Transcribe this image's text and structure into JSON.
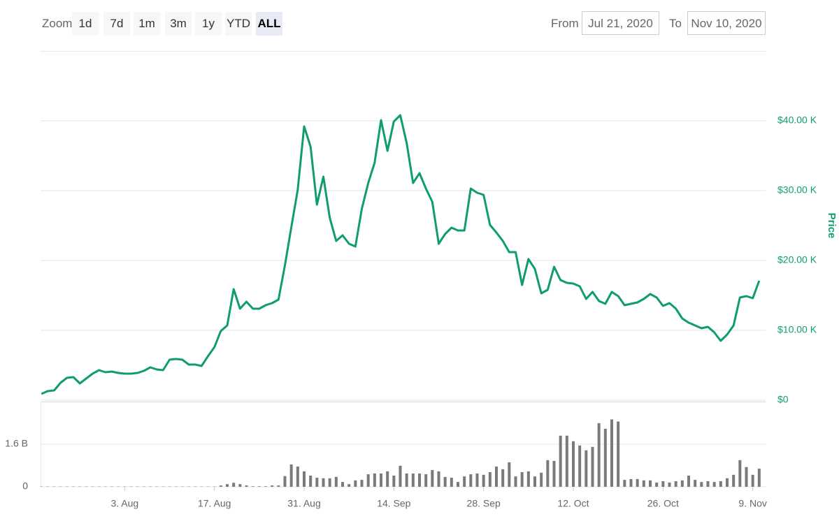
{
  "controls": {
    "zoom_label": "Zoom",
    "zoom_buttons": [
      "1d",
      "7d",
      "1m",
      "3m",
      "1y",
      "YTD",
      "ALL"
    ],
    "selected": 6,
    "from_label": "From",
    "from": "Jul 21, 2020",
    "to_label": "To",
    "to": "Nov 10, 2020"
  },
  "chart_data": {
    "type": "line",
    "ylabel": "Price",
    "x": [
      "2020-07-21",
      "2020-07-22",
      "2020-07-23",
      "2020-07-24",
      "2020-07-25",
      "2020-07-26",
      "2020-07-27",
      "2020-07-28",
      "2020-07-29",
      "2020-07-30",
      "2020-07-31",
      "2020-08-01",
      "2020-08-02",
      "2020-08-03",
      "2020-08-04",
      "2020-08-05",
      "2020-08-06",
      "2020-08-07",
      "2020-08-08",
      "2020-08-09",
      "2020-08-10",
      "2020-08-11",
      "2020-08-12",
      "2020-08-13",
      "2020-08-14",
      "2020-08-15",
      "2020-08-16",
      "2020-08-17",
      "2020-08-18",
      "2020-08-19",
      "2020-08-20",
      "2020-08-21",
      "2020-08-22",
      "2020-08-23",
      "2020-08-24",
      "2020-08-25",
      "2020-08-26",
      "2020-08-27",
      "2020-08-28",
      "2020-08-29",
      "2020-08-30",
      "2020-08-31",
      "2020-09-01",
      "2020-09-02",
      "2020-09-03",
      "2020-09-04",
      "2020-09-05",
      "2020-09-06",
      "2020-09-07",
      "2020-09-08",
      "2020-09-09",
      "2020-09-10",
      "2020-09-11",
      "2020-09-12",
      "2020-09-13",
      "2020-09-14",
      "2020-09-15",
      "2020-09-16",
      "2020-09-17",
      "2020-09-18",
      "2020-09-19",
      "2020-09-20",
      "2020-09-21",
      "2020-09-22",
      "2020-09-23",
      "2020-09-24",
      "2020-09-25",
      "2020-09-26",
      "2020-09-27",
      "2020-09-28",
      "2020-09-29",
      "2020-09-30",
      "2020-10-01",
      "2020-10-02",
      "2020-10-03",
      "2020-10-04",
      "2020-10-05",
      "2020-10-06",
      "2020-10-07",
      "2020-10-08",
      "2020-10-09",
      "2020-10-10",
      "2020-10-11",
      "2020-10-12",
      "2020-10-13",
      "2020-10-14",
      "2020-10-15",
      "2020-10-16",
      "2020-10-17",
      "2020-10-18",
      "2020-10-19",
      "2020-10-20",
      "2020-10-21",
      "2020-10-22",
      "2020-10-23",
      "2020-10-24",
      "2020-10-25",
      "2020-10-26",
      "2020-10-27",
      "2020-10-28",
      "2020-10-29",
      "2020-10-30",
      "2020-10-31",
      "2020-11-01",
      "2020-11-02",
      "2020-11-03",
      "2020-11-04",
      "2020-11-05",
      "2020-11-06",
      "2020-11-07",
      "2020-11-08",
      "2020-11-09",
      "2020-11-10"
    ],
    "xlim": [
      "2020-07-20",
      "2020-11-11"
    ],
    "xticks": [
      {
        "value": "2020-08-03",
        "label": "3. Aug"
      },
      {
        "value": "2020-08-17",
        "label": "17. Aug"
      },
      {
        "value": "2020-08-31",
        "label": "31. Aug"
      },
      {
        "value": "2020-09-14",
        "label": "14. Sep"
      },
      {
        "value": "2020-09-28",
        "label": "28. Sep"
      },
      {
        "value": "2020-10-12",
        "label": "12. Oct"
      },
      {
        "value": "2020-10-26",
        "label": "26. Oct"
      },
      {
        "value": "2020-11-09",
        "label": "9. Nov"
      }
    ],
    "ylim": [
      0,
      50
    ],
    "yticks": [
      {
        "value": 0,
        "label": "$0"
      },
      {
        "value": 10,
        "label": "$10.00 K"
      },
      {
        "value": 20,
        "label": "$20.00 K"
      },
      {
        "value": 30,
        "label": "$30.00 K"
      },
      {
        "value": 40,
        "label": "$40.00 K"
      }
    ],
    "y2lim": [
      0,
      3.2
    ],
    "y2ticks": [
      0,
      {
        "value": 1.6,
        "label": "1.6 B"
      }
    ],
    "grid": true,
    "series": [
      {
        "color": "#0f9d6e",
        "values": [
          0.9,
          1.3,
          1.4,
          2.5,
          3.2,
          3.3,
          2.4,
          3.1,
          3.8,
          4.3,
          4.0,
          4.1,
          3.9,
          3.8,
          3.8,
          3.9,
          4.2,
          4.7,
          4.4,
          4.3,
          5.8,
          5.9,
          5.8,
          5.1,
          5.1,
          4.9,
          6.3,
          7.6,
          9.9,
          10.7,
          15.9,
          13.1,
          14.1,
          13.1,
          13.1,
          13.6,
          13.9,
          14.4,
          19.3,
          24.8,
          30.1,
          39.2,
          36.3,
          28.0,
          32.0,
          26.1,
          22.8,
          23.6,
          22.4,
          22.0,
          27.4,
          31.1,
          34.0,
          40.1,
          35.7,
          39.9,
          40.8,
          36.8,
          31.1,
          32.5,
          30.3,
          28.4,
          22.4,
          23.8,
          24.7,
          24.3,
          24.3,
          30.3,
          29.7,
          29.4,
          25.1,
          24.0,
          22.8,
          21.2,
          21.2,
          16.5,
          20.2,
          18.8,
          15.3,
          15.8,
          19.1,
          17.2,
          16.8,
          16.7,
          16.3,
          14.5,
          15.5,
          14.2,
          13.8,
          15.5,
          14.9,
          13.6,
          13.8,
          14.0,
          14.5,
          15.2,
          14.7,
          13.5,
          13.9,
          13.1,
          11.7,
          11.1,
          10.7,
          10.3,
          10.5,
          9.7,
          8.5,
          9.4,
          10.7,
          14.7,
          14.9,
          14.6,
          17.1
        ]
      },
      {
        "type": "bar",
        "axis": "y2",
        "color": "#7a7a7a",
        "values": [
          0.01,
          0.01,
          0.01,
          0.01,
          0.01,
          0.01,
          0.01,
          0.01,
          0.01,
          0.01,
          0.01,
          0.01,
          0.01,
          0.01,
          0.01,
          0.01,
          0.01,
          0.01,
          0.01,
          0.01,
          0.01,
          0.01,
          0.01,
          0.01,
          0.01,
          0.01,
          0.01,
          0.01,
          0.05,
          0.1,
          0.15,
          0.1,
          0.05,
          0.02,
          0.02,
          0.02,
          0.05,
          0.05,
          0.4,
          0.84,
          0.76,
          0.58,
          0.42,
          0.34,
          0.32,
          0.32,
          0.37,
          0.18,
          0.1,
          0.24,
          0.26,
          0.47,
          0.5,
          0.5,
          0.58,
          0.42,
          0.79,
          0.5,
          0.5,
          0.5,
          0.47,
          0.63,
          0.58,
          0.37,
          0.34,
          0.18,
          0.39,
          0.47,
          0.5,
          0.45,
          0.55,
          0.76,
          0.66,
          0.92,
          0.39,
          0.55,
          0.58,
          0.39,
          0.53,
          1.0,
          0.97,
          1.92,
          1.92,
          1.71,
          1.55,
          1.37,
          1.5,
          2.39,
          2.18,
          2.53,
          2.45,
          0.26,
          0.29,
          0.29,
          0.24,
          0.24,
          0.16,
          0.21,
          0.16,
          0.21,
          0.24,
          0.42,
          0.26,
          0.18,
          0.21,
          0.18,
          0.21,
          0.32,
          0.45,
          1.0,
          0.74,
          0.45,
          0.68
        ]
      }
    ]
  }
}
